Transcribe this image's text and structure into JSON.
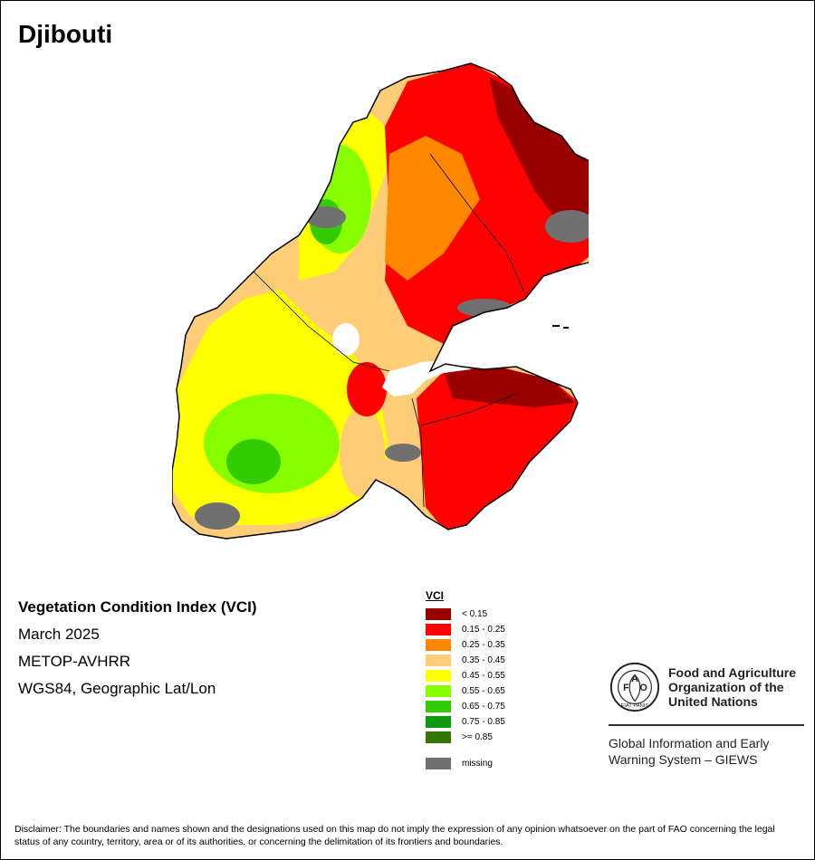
{
  "title": "Djibouti",
  "info": {
    "index_name": "Vegetation Condition Index (VCI)",
    "date": "March 2025",
    "sensor": "METOP-AVHRR",
    "projection": "WGS84, Geographic Lat/Lon"
  },
  "legend": {
    "title": "VCI",
    "classes": [
      {
        "label": "< 0.15",
        "color": "#990000"
      },
      {
        "label": "0.15 - 0.25",
        "color": "#ff0000"
      },
      {
        "label": "0.25 - 0.35",
        "color": "#ff8800"
      },
      {
        "label": "0.35 - 0.45",
        "color": "#ffcc77"
      },
      {
        "label": "0.45 - 0.55",
        "color": "#ffff00"
      },
      {
        "label": "0.55 - 0.65",
        "color": "#88ff00"
      },
      {
        "label": "0.65 - 0.75",
        "color": "#33cc00"
      },
      {
        "label": "0.75 - 0.85",
        "color": "#119911"
      },
      {
        "label": ">= 0.85",
        "color": "#337700"
      }
    ],
    "missing": {
      "label": "missing",
      "color": "#707070"
    }
  },
  "logo": {
    "letters": [
      "F",
      "A",
      "O"
    ],
    "seal_text": "FIAT PANIS",
    "org_name_lines": [
      "Food and Agriculture",
      "Organization of the",
      "United Nations"
    ],
    "system_lines": [
      "Global Information and Early",
      "Warning System – GIEWS"
    ]
  },
  "disclaimer": "Disclaimer: The boundaries and names shown and the designations used on this map do not imply the expression of any opinion whatsoever on the part of FAO concerning the legal status of any country, territory, area or of its authorities, or concerning the delimitation of its frontiers and boundaries."
}
